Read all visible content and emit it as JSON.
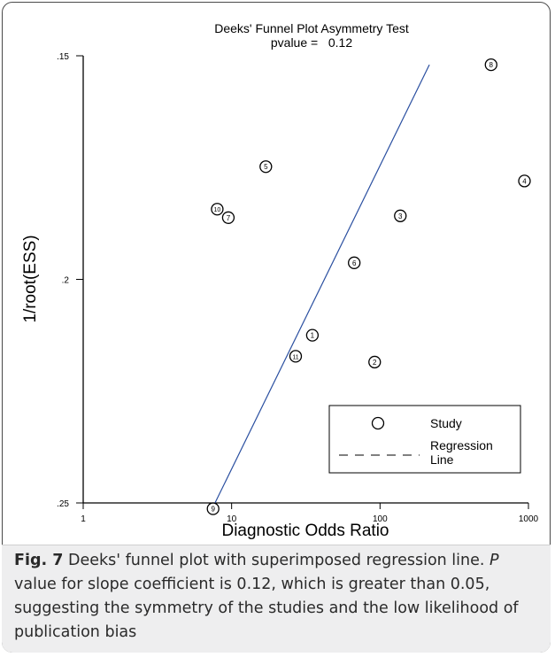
{
  "chart_data": {
    "type": "scatter",
    "title": "Deeks' Funnel Plot Asymmetry Test",
    "subtitle": "pvalue =   0.12",
    "xlabel": "Diagnostic Odds Ratio",
    "ylabel": "1/root(ESS)",
    "xscale": "log",
    "xlim": [
      1,
      1000
    ],
    "ylim": [
      0.25,
      0.15
    ],
    "y_inverted": true,
    "x_ticks": [
      1,
      10,
      100,
      1000
    ],
    "x_tick_labels": [
      "1",
      "10",
      "100",
      "1000"
    ],
    "y_ticks": [
      0.15,
      0.2,
      0.25
    ],
    "y_tick_labels": [
      ".15",
      ".2",
      ".25"
    ],
    "grid": false,
    "points": [
      {
        "label": "1",
        "x": 35,
        "y": 0.2125
      },
      {
        "label": "2",
        "x": 92,
        "y": 0.2185
      },
      {
        "label": "3",
        "x": 137,
        "y": 0.1858
      },
      {
        "label": "4",
        "x": 940,
        "y": 0.178
      },
      {
        "label": "5",
        "x": 17,
        "y": 0.1748
      },
      {
        "label": "6",
        "x": 67,
        "y": 0.1963
      },
      {
        "label": "7",
        "x": 9.5,
        "y": 0.1862
      },
      {
        "label": "8",
        "x": 560,
        "y": 0.152
      },
      {
        "label": "9",
        "x": 7.5,
        "y": 0.2513
      },
      {
        "label": "10",
        "x": 8,
        "y": 0.1843
      },
      {
        "label": "11",
        "x": 27,
        "y": 0.2172
      }
    ],
    "regression_line": {
      "x": [
        7.6,
        215
      ],
      "y": [
        0.2505,
        0.152
      ]
    },
    "legend": {
      "position": "bottom-right",
      "entries": [
        {
          "marker": "circle",
          "label": "Study"
        },
        {
          "marker": "dashed-line",
          "label": "Regression Line"
        }
      ]
    },
    "colors": {
      "regression": "#2a4fa0",
      "points": "#000000",
      "axes": "#000000"
    }
  },
  "caption": {
    "label": "Fig. 7",
    "text_before_italic": " Deeks' funnel plot with superimposed regression line. ",
    "italic": "P",
    "text_after_italic": " value for slope coefficient is 0.12, which is greater than 0.05, suggesting the symmetry of the studies and the low likelihood of publication bias"
  }
}
